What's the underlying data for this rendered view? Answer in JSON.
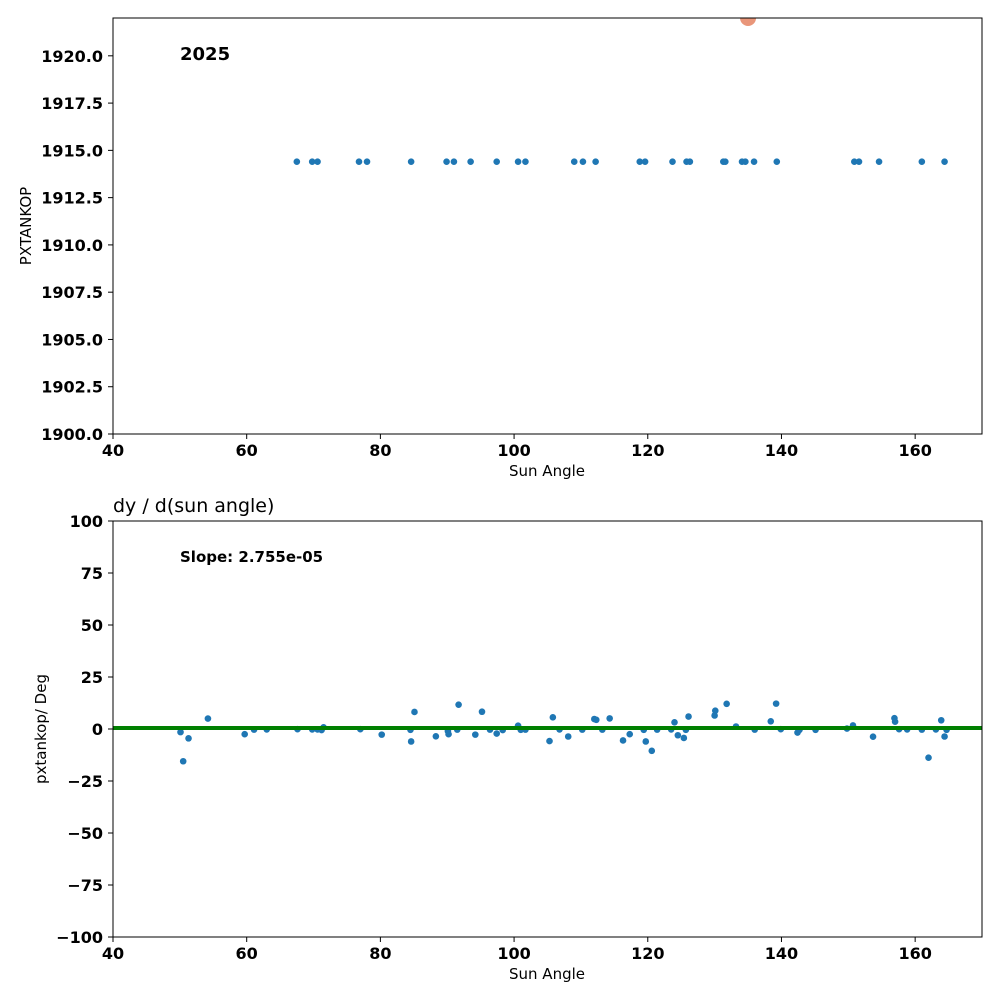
{
  "chart_data": [
    {
      "type": "scatter",
      "title": "",
      "annotation": "2025",
      "xlabel": "Sun Angle",
      "ylabel": "PXTANKOP",
      "xlim": [
        40,
        170
      ],
      "ylim": [
        1900,
        1922
      ],
      "x_ticks": [
        "40",
        "60",
        "80",
        "100",
        "120",
        "140",
        "160"
      ],
      "y_ticks": [
        "1900.0",
        "1902.5",
        "1905.0",
        "1907.5",
        "1910.0",
        "1912.5",
        "1915.0",
        "1917.5",
        "1920.0"
      ],
      "grid": false,
      "series": [
        {
          "color": "#1f77b4",
          "points": [
            [
              67.5,
              1914.4
            ],
            [
              69.8,
              1914.4
            ],
            [
              70.6,
              1914.4
            ],
            [
              76.8,
              1914.4
            ],
            [
              78.0,
              1914.4
            ],
            [
              84.6,
              1914.4
            ],
            [
              89.9,
              1914.4
            ],
            [
              91.0,
              1914.4
            ],
            [
              93.5,
              1914.4
            ],
            [
              97.4,
              1914.4
            ],
            [
              100.6,
              1914.4
            ],
            [
              101.7,
              1914.4
            ],
            [
              109.0,
              1914.4
            ],
            [
              110.3,
              1914.4
            ],
            [
              112.2,
              1914.4
            ],
            [
              118.8,
              1914.4
            ],
            [
              119.6,
              1914.4
            ],
            [
              123.7,
              1914.4
            ],
            [
              125.8,
              1914.4
            ],
            [
              126.3,
              1914.4
            ],
            [
              131.3,
              1914.4
            ],
            [
              131.6,
              1914.4
            ],
            [
              134.1,
              1914.4
            ],
            [
              134.6,
              1914.4
            ],
            [
              135.9,
              1914.4
            ],
            [
              139.3,
              1914.4
            ],
            [
              150.9,
              1914.4
            ],
            [
              151.6,
              1914.4
            ],
            [
              154.6,
              1914.4
            ],
            [
              161.0,
              1914.4
            ],
            [
              164.4,
              1914.4
            ]
          ]
        }
      ],
      "highlight_marker": {
        "x": 135.0,
        "y": 1922.0,
        "color": "#e9967a"
      }
    },
    {
      "type": "scatter",
      "title": "dy / d(sun angle)",
      "annotation": "Slope: 2.755e-05",
      "xlabel": "Sun Angle",
      "ylabel": "pxtankop/ Deg",
      "xlim": [
        40,
        170
      ],
      "ylim": [
        -100,
        100
      ],
      "x_ticks": [
        "40",
        "60",
        "80",
        "100",
        "120",
        "140",
        "160"
      ],
      "y_ticks": [
        "−100",
        "−75",
        "−50",
        "−25",
        "0",
        "25",
        "50",
        "75",
        "100"
      ],
      "grid": false,
      "trend_line": {
        "value": 0.5,
        "color": "#008000"
      },
      "series": [
        {
          "color": "#1f77b4",
          "points": [
            [
              50.1,
              -1.5
            ],
            [
              50.5,
              -15.5
            ],
            [
              51.3,
              -4.5
            ],
            [
              54.2,
              5.0
            ],
            [
              59.7,
              -2.5
            ],
            [
              61.1,
              -0.3
            ],
            [
              63.0,
              -0.2
            ],
            [
              67.6,
              -0.1
            ],
            [
              69.8,
              -0.2
            ],
            [
              70.6,
              -0.2
            ],
            [
              71.2,
              -0.5
            ],
            [
              71.5,
              0.8
            ],
            [
              77.0,
              -0.1
            ],
            [
              80.2,
              -2.7
            ],
            [
              84.5,
              -0.4
            ],
            [
              84.6,
              -6.0
            ],
            [
              85.1,
              8.2
            ],
            [
              88.3,
              -3.5
            ],
            [
              90.1,
              -1.0
            ],
            [
              90.2,
              -2.5
            ],
            [
              91.5,
              -0.3
            ],
            [
              91.7,
              11.7
            ],
            [
              94.2,
              -2.7
            ],
            [
              95.2,
              8.3
            ],
            [
              96.4,
              -0.3
            ],
            [
              97.4,
              -2.2
            ],
            [
              98.3,
              -0.5
            ],
            [
              100.6,
              1.6
            ],
            [
              101.0,
              -0.4
            ],
            [
              101.7,
              -0.3
            ],
            [
              105.3,
              -5.8
            ],
            [
              105.8,
              5.6
            ],
            [
              106.8,
              -0.2
            ],
            [
              108.1,
              -3.6
            ],
            [
              110.2,
              -0.3
            ],
            [
              112.0,
              4.8
            ],
            [
              112.3,
              4.4
            ],
            [
              113.2,
              -0.3
            ],
            [
              114.3,
              5.1
            ],
            [
              116.3,
              -5.5
            ],
            [
              117.3,
              -2.5
            ],
            [
              119.4,
              -0.4
            ],
            [
              119.7,
              -6.0
            ],
            [
              120.6,
              -10.5
            ],
            [
              121.4,
              -0.3
            ],
            [
              123.5,
              -0.2
            ],
            [
              124.0,
              3.2
            ],
            [
              124.5,
              -3.0
            ],
            [
              125.4,
              -4.3
            ],
            [
              125.7,
              -0.4
            ],
            [
              126.1,
              6.0
            ],
            [
              130.0,
              6.5
            ],
            [
              130.1,
              8.8
            ],
            [
              131.8,
              12.1
            ],
            [
              133.2,
              1.2
            ],
            [
              136.0,
              -0.3
            ],
            [
              138.4,
              3.7
            ],
            [
              139.2,
              12.2
            ],
            [
              139.9,
              -0.1
            ],
            [
              142.4,
              -1.7
            ],
            [
              142.7,
              -0.4
            ],
            [
              145.1,
              -0.4
            ],
            [
              149.8,
              0.2
            ],
            [
              150.7,
              1.7
            ],
            [
              153.7,
              -3.7
            ],
            [
              156.9,
              5.2
            ],
            [
              157.0,
              3.5
            ],
            [
              157.6,
              -0.1
            ],
            [
              158.8,
              -0.2
            ],
            [
              161.0,
              -0.3
            ],
            [
              162.0,
              -13.8
            ],
            [
              163.1,
              -0.2
            ],
            [
              163.9,
              4.2
            ],
            [
              164.4,
              -3.6
            ],
            [
              164.7,
              -0.4
            ]
          ]
        }
      ]
    }
  ]
}
